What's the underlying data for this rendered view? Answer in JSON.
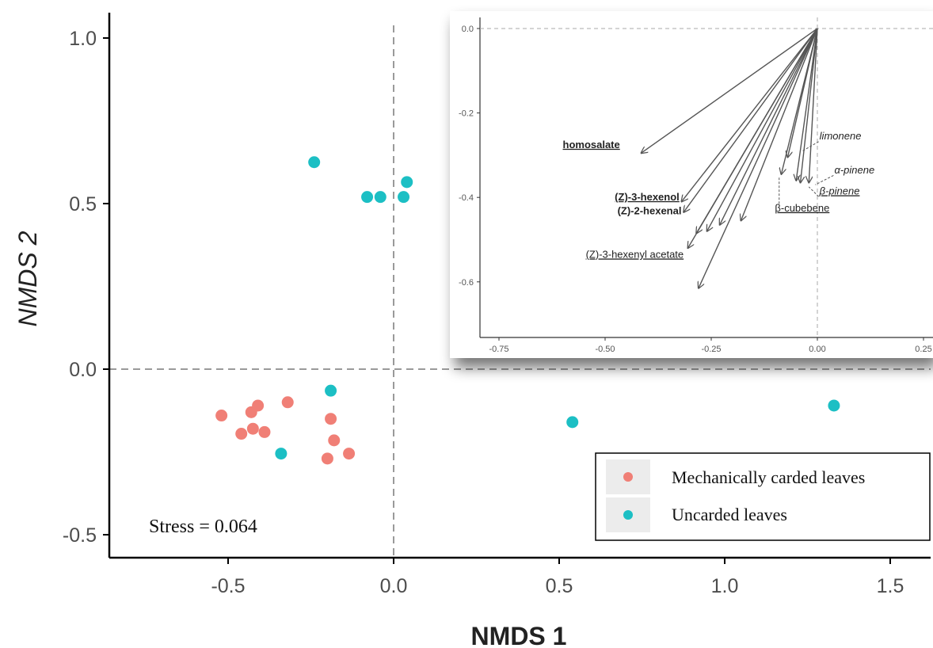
{
  "chart_data": [
    {
      "type": "scatter",
      "xlabel": "NMDS 1",
      "ylabel": "NMDS 2",
      "xlim": [
        -0.87,
        1.62
      ],
      "ylim": [
        -0.57,
        1.08
      ],
      "xticks": [
        -0.5,
        0.0,
        0.5,
        1.0,
        1.5
      ],
      "yticks": [
        -0.5,
        0.0,
        0.5,
        1.0
      ],
      "xtick_labels": [
        "-0.5",
        "0.0",
        "0.5",
        "1.0",
        "1.5"
      ],
      "ytick_labels": [
        "-0.5",
        "0.0",
        "0.5",
        "1.0"
      ],
      "reference_lines": {
        "x": 0,
        "y": 0,
        "style": "dashed"
      },
      "annotation": "Stress = 0.064",
      "legend_position": "bottom-right",
      "series": [
        {
          "name": "Mechanically carded leaves",
          "color": "#f07f76",
          "points": [
            [
              -0.52,
              -0.14
            ],
            [
              -0.46,
              -0.195
            ],
            [
              -0.43,
              -0.13
            ],
            [
              -0.425,
              -0.18
            ],
            [
              -0.41,
              -0.11
            ],
            [
              -0.39,
              -0.19
            ],
            [
              -0.32,
              -0.1
            ],
            [
              -0.19,
              -0.15
            ],
            [
              -0.18,
              -0.215
            ],
            [
              -0.2,
              -0.27
            ],
            [
              -0.135,
              -0.255
            ]
          ]
        },
        {
          "name": "Uncarded leaves",
          "color": "#1cbfc4",
          "points": [
            [
              -0.24,
              0.625
            ],
            [
              -0.08,
              0.52
            ],
            [
              -0.04,
              0.52
            ],
            [
              0.03,
              0.52
            ],
            [
              0.04,
              0.565
            ],
            [
              -0.19,
              -0.065
            ],
            [
              -0.34,
              -0.255
            ],
            [
              0.54,
              -0.16
            ],
            [
              1.33,
              -0.11
            ]
          ]
        }
      ]
    },
    {
      "type": "vector",
      "xlim": [
        -0.8,
        0.3
      ],
      "ylim": [
        -0.72,
        0.02
      ],
      "xticks": [
        -0.75,
        -0.5,
        -0.25,
        0.0,
        0.25
      ],
      "yticks": [
        0.0,
        -0.2,
        -0.4,
        -0.6
      ],
      "xtick_labels": [
        "-0.75",
        "-0.50",
        "-0.25",
        "0.00",
        "0.25"
      ],
      "ytick_labels": [
        "0.0",
        "-0.2",
        "-0.4",
        "-0.6"
      ],
      "reference_lines": {
        "x": 0,
        "y": 0,
        "style": "dashed"
      },
      "vectors": [
        {
          "x": -0.415,
          "y": -0.295
        },
        {
          "x": -0.32,
          "y": -0.41
        },
        {
          "x": -0.315,
          "y": -0.435
        },
        {
          "x": -0.305,
          "y": -0.52
        },
        {
          "x": -0.28,
          "y": -0.615
        },
        {
          "x": -0.285,
          "y": -0.485
        },
        {
          "x": -0.26,
          "y": -0.48
        },
        {
          "x": -0.23,
          "y": -0.465
        },
        {
          "x": -0.18,
          "y": -0.455
        },
        {
          "x": -0.07,
          "y": -0.305
        },
        {
          "x": -0.085,
          "y": -0.345
        },
        {
          "x": -0.05,
          "y": -0.36
        },
        {
          "x": -0.04,
          "y": -0.365
        },
        {
          "x": -0.02,
          "y": -0.365
        }
      ],
      "labels": [
        {
          "text": "homosalate",
          "x": -0.465,
          "y": -0.283,
          "style": "bold-underline",
          "anchor": "end"
        },
        {
          "text": "(Z)-3-hexenol",
          "x": -0.325,
          "y": -0.407,
          "style": "bold-underline",
          "anchor": "end"
        },
        {
          "text": "(Z)-2-hexenal",
          "x": -0.32,
          "y": -0.44,
          "style": "bold",
          "anchor": "end"
        },
        {
          "text": "(Z)-3-hexenyl acetate",
          "x": -0.315,
          "y": -0.543,
          "style": "underline",
          "anchor": "end"
        },
        {
          "text": "limonene",
          "x": 0.005,
          "y": -0.263,
          "style": "italic",
          "anchor": "start"
        },
        {
          "text": "α-pinene",
          "x": 0.04,
          "y": -0.343,
          "style": "italic",
          "anchor": "start"
        },
        {
          "text": "β-pinene",
          "x": 0.005,
          "y": -0.393,
          "style": "italic-underline",
          "anchor": "start"
        },
        {
          "text": "β-cubebene",
          "x": -0.1,
          "y": -0.433,
          "style": "underline",
          "anchor": "start"
        }
      ]
    }
  ]
}
